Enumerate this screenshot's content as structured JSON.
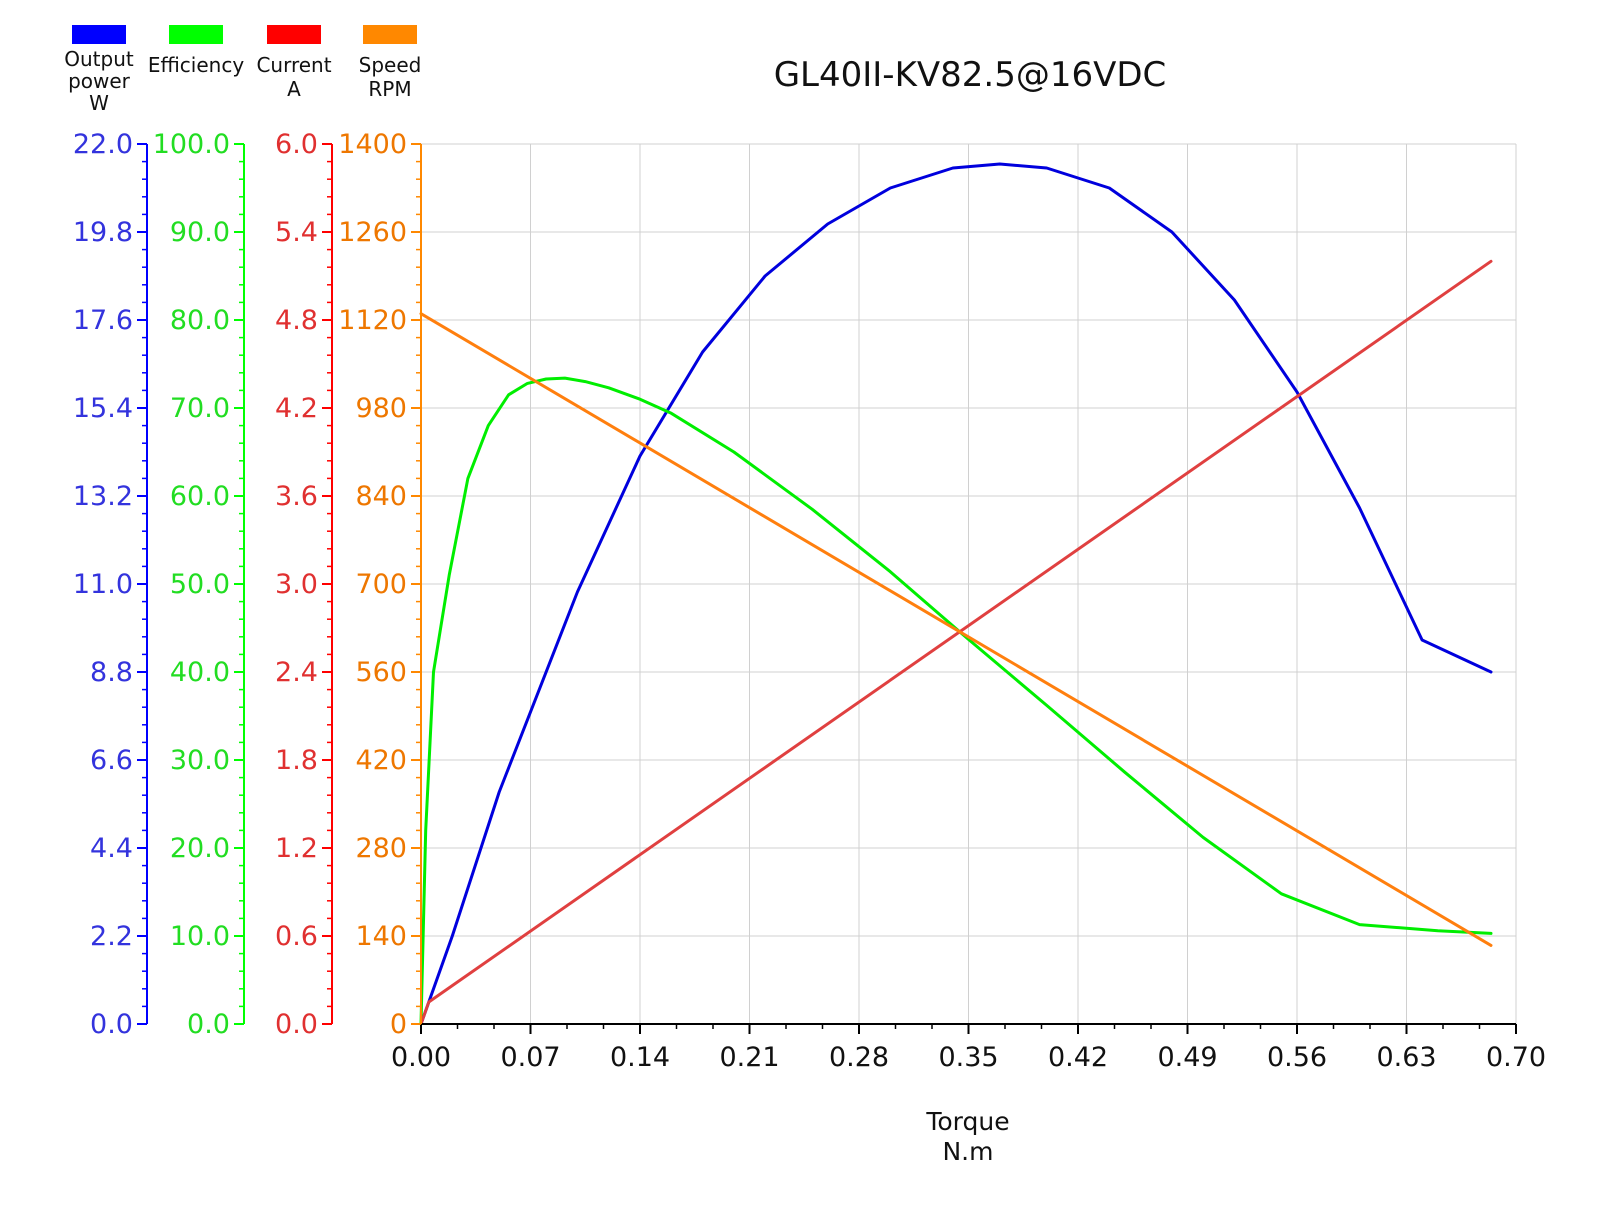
{
  "chart_data": {
    "type": "line",
    "title": "GL40II-KV82.5@16VDC",
    "xlabel": [
      "Torque",
      "N.m"
    ],
    "x_ticks": [
      "0.00",
      "0.07",
      "0.14",
      "0.21",
      "0.28",
      "0.35",
      "0.42",
      "0.49",
      "0.56",
      "0.63",
      "0.70"
    ],
    "xlim": [
      0,
      0.7
    ],
    "grid": true,
    "legend_position": "top-left",
    "axes": [
      {
        "id": "power",
        "name": "Output power",
        "label_lines": [
          "Output",
          "power",
          "W"
        ],
        "color": "#0000ff",
        "ylim": [
          0,
          22
        ],
        "ticks": [
          "0.0",
          "2.2",
          "4.4",
          "6.6",
          "8.8",
          "11.0",
          "13.2",
          "15.4",
          "17.6",
          "19.8",
          "22.0"
        ]
      },
      {
        "id": "efficiency",
        "name": "Efficiency",
        "label_lines": [
          "Efficiency"
        ],
        "color": "#00ff00",
        "ylim": [
          0,
          100
        ],
        "ticks": [
          "0.0",
          "10.0",
          "20.0",
          "30.0",
          "40.0",
          "50.0",
          "60.0",
          "70.0",
          "80.0",
          "90.0",
          "100.0"
        ]
      },
      {
        "id": "current",
        "name": "Current",
        "label_lines": [
          "Current",
          "A"
        ],
        "color": "#ff0000",
        "ylim": [
          0,
          6
        ],
        "ticks": [
          "0.0",
          "0.6",
          "1.2",
          "1.8",
          "2.4",
          "3.0",
          "3.6",
          "4.2",
          "4.8",
          "5.4",
          "6.0"
        ]
      },
      {
        "id": "speed",
        "name": "Speed",
        "label_lines": [
          "Speed",
          "RPM"
        ],
        "color": "#ff8800",
        "ylim": [
          0,
          1400
        ],
        "ticks": [
          "0",
          "140",
          "280",
          "420",
          "560",
          "700",
          "840",
          "980",
          "1120",
          "1260",
          "1400"
        ]
      }
    ],
    "series": [
      {
        "name": "Output power",
        "axis": "power",
        "color": "#0000dd",
        "x": [
          0,
          0.02,
          0.05,
          0.1,
          0.14,
          0.18,
          0.22,
          0.26,
          0.3,
          0.34,
          0.37,
          0.4,
          0.44,
          0.48,
          0.52,
          0.56,
          0.6,
          0.64,
          0.684
        ],
        "y": [
          0,
          2.2,
          5.8,
          10.8,
          14.2,
          16.8,
          18.7,
          20.0,
          20.9,
          21.4,
          21.5,
          21.4,
          20.9,
          19.8,
          18.1,
          15.8,
          12.9,
          9.6,
          8.8
        ]
      },
      {
        "name": "Efficiency",
        "axis": "efficiency",
        "color": "#00ee00",
        "x": [
          0,
          0.003,
          0.008,
          0.018,
          0.03,
          0.043,
          0.056,
          0.068,
          0.08,
          0.092,
          0.105,
          0.12,
          0.14,
          0.16,
          0.2,
          0.25,
          0.3,
          0.35,
          0.4,
          0.45,
          0.5,
          0.55,
          0.6,
          0.65,
          0.684
        ],
        "y": [
          0,
          22,
          40,
          51,
          62,
          68,
          71.5,
          72.8,
          73.3,
          73.4,
          73.0,
          72.3,
          71,
          69.4,
          65,
          58.5,
          51.4,
          43.7,
          36.2,
          28.6,
          21.2,
          14.8,
          11.3,
          10.6,
          10.3
        ]
      },
      {
        "name": "Current",
        "axis": "current",
        "color": "#e04040",
        "x": [
          0,
          0.005,
          0.684
        ],
        "y": [
          0,
          0.15,
          5.2
        ]
      },
      {
        "name": "Speed",
        "axis": "speed",
        "color": "#ff7f0e",
        "x": [
          0,
          0.684
        ],
        "y": [
          1130,
          125
        ]
      }
    ]
  }
}
